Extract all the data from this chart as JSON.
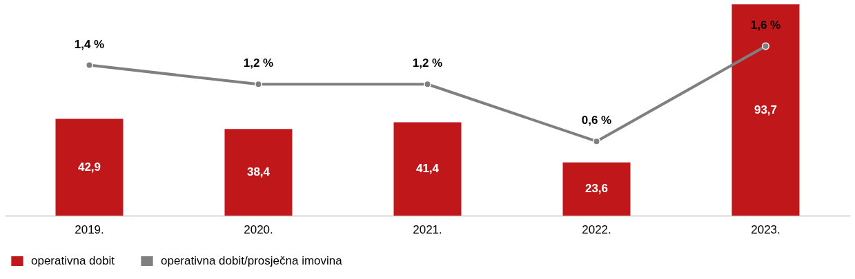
{
  "chart_data": {
    "type": "bar",
    "categories": [
      "2019.",
      "2020.",
      "2021.",
      "2022.",
      "2023."
    ],
    "ylim": [
      0,
      95
    ],
    "y2lim": [
      -0.18,
      2.07
    ],
    "tick_labels": "x",
    "grid": false,
    "legend": "bottom",
    "series": [
      {
        "name": "operativna dobit",
        "color": "#c0181a",
        "values": [
          42.9,
          38.4,
          41.4,
          23.6,
          93.7
        ],
        "value_labels": [
          "42,9",
          "38,4",
          "41,4",
          "23,6",
          "93,7"
        ]
      },
      {
        "name": "operativna dobit/prosječna imovina",
        "type": "line",
        "axis": "y2",
        "marker": "circle",
        "color": "#7f7f7f",
        "values": [
          1.4,
          1.2,
          1.2,
          0.6,
          1.6
        ],
        "value_labels": [
          "1,4 %",
          "1,2 %",
          "1,2 %",
          "0,6 %",
          "1,6 %"
        ]
      }
    ]
  }
}
